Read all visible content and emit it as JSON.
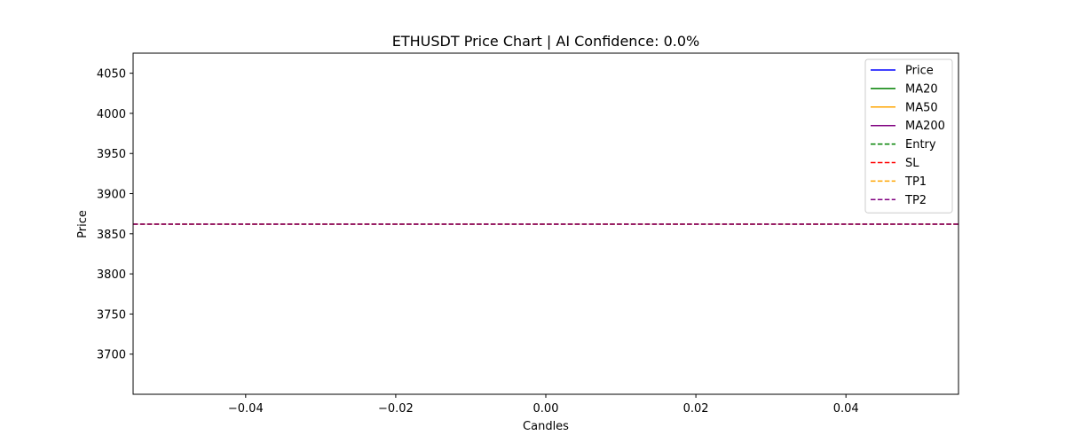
{
  "chart_data": {
    "type": "line",
    "title": "ETHUSDT Price Chart | AI Confidence: 0.0%",
    "xlabel": "Candles",
    "ylabel": "Price",
    "xlim": [
      -0.055,
      0.055
    ],
    "ylim": [
      3650,
      4075
    ],
    "x_ticks": [
      -0.04,
      -0.02,
      0.0,
      0.02,
      0.04
    ],
    "x_tick_labels": [
      "−0.04",
      "−0.02",
      "0.00",
      "0.02",
      "0.04"
    ],
    "y_ticks": [
      3700,
      3750,
      3800,
      3850,
      3900,
      3950,
      4000,
      4050
    ],
    "y_tick_labels": [
      "3700",
      "3750",
      "3800",
      "3850",
      "3900",
      "3950",
      "4000",
      "4050"
    ],
    "grid": false,
    "legend_position": "upper right",
    "series": [
      {
        "name": "Price",
        "style": "solid",
        "color": "#0000ff",
        "x": [
          0
        ],
        "y": [
          3862
        ]
      },
      {
        "name": "MA20",
        "style": "solid",
        "color": "#008000",
        "x": [],
        "y": []
      },
      {
        "name": "MA50",
        "style": "solid",
        "color": "#ffa500",
        "x": [],
        "y": []
      },
      {
        "name": "MA200",
        "style": "solid",
        "color": "#800080",
        "x": [],
        "y": []
      }
    ],
    "hlines": [
      {
        "name": "Entry",
        "style": "dashed",
        "color": "#008000",
        "y": 3862
      },
      {
        "name": "SL",
        "style": "dashed",
        "color": "#ff0000",
        "y": 3862
      },
      {
        "name": "TP1",
        "style": "dashed",
        "color": "#ffa500",
        "y": 3862
      },
      {
        "name": "TP2",
        "style": "dashed",
        "color": "#800080",
        "y": 3862
      }
    ]
  }
}
